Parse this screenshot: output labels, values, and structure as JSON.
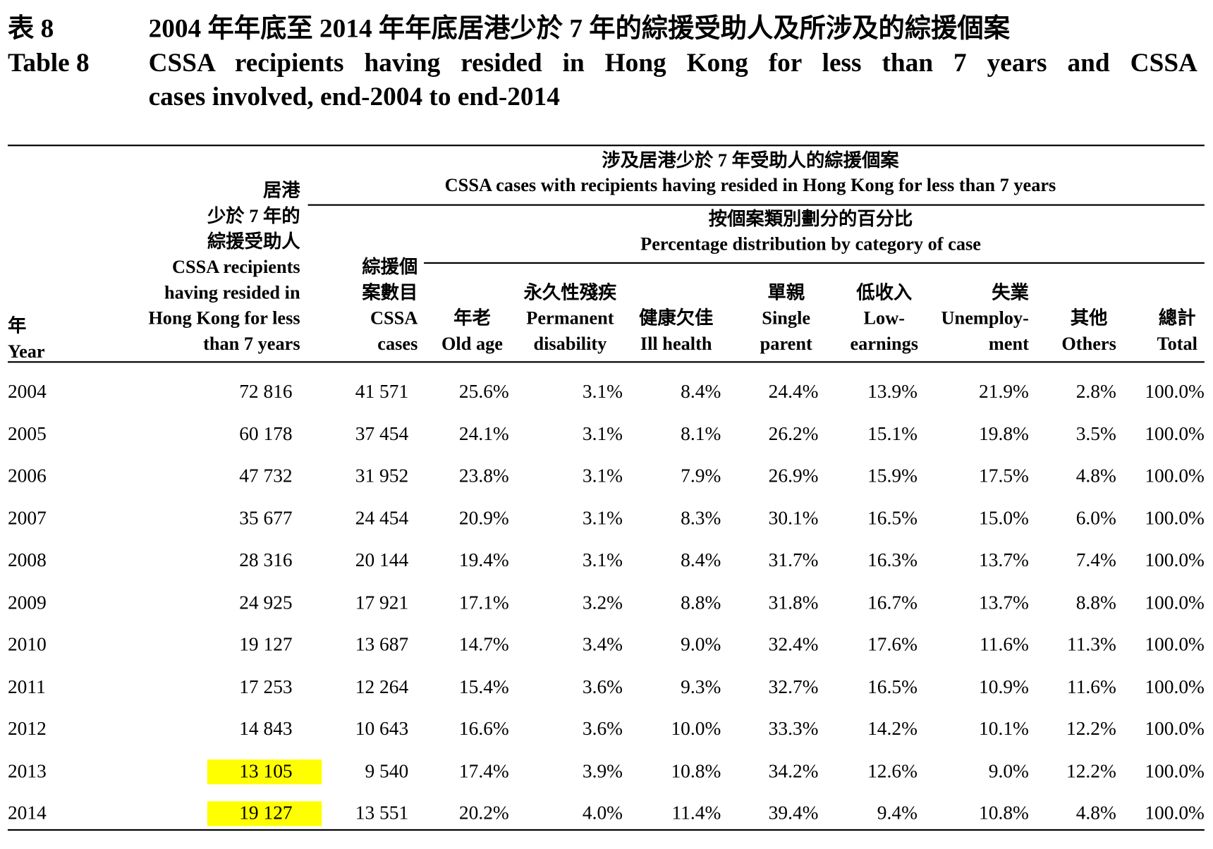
{
  "header": {
    "label_zh": "表 8",
    "label_en": "Table 8",
    "title_zh": "2004 年年底至 2014 年年底居港少於 7 年的綜援受助人及所涉及的綜援個案",
    "title_en_lines": [
      "CSSA recipients having resided in Hong Kong for less than 7 years and CSSA",
      "cases involved, end-2004 to end-2014"
    ]
  },
  "table": {
    "group_header": {
      "zh": "涉及居港少於 7 年受助人的綜援個案",
      "en": "CSSA cases with recipients having resided in Hong Kong for less than 7 years"
    },
    "subgroup_header": {
      "zh": "按個案類別劃分的百分比",
      "en": "Percentage distribution by category of case"
    },
    "column_headers": [
      [
        "年",
        "Year"
      ],
      [
        "居港",
        "少於 7 年的",
        "綜援受助人",
        "CSSA recipients",
        "having resided in",
        "Hong Kong for less",
        "than 7 years"
      ],
      [
        "綜援個",
        "案數目",
        "CSSA",
        "cases"
      ],
      [
        "年老",
        "Old age"
      ],
      [
        "永久性殘疾",
        "Permanent",
        "disability"
      ],
      [
        "健康欠佳",
        "Ill health"
      ],
      [
        "單親",
        "Single",
        "parent"
      ],
      [
        "低收入",
        "Low-",
        "earnings"
      ],
      [
        "失業",
        "Unemploy-",
        "ment"
      ],
      [
        "其他",
        "Others"
      ],
      [
        "總計",
        "Total"
      ]
    ],
    "rows": [
      [
        "2004",
        "72 816",
        "41 571",
        "25.6%",
        "3.1%",
        "8.4%",
        "24.4%",
        "13.9%",
        "21.9%",
        "2.8%",
        "100.0%"
      ],
      [
        "2005",
        "60 178",
        "37 454",
        "24.1%",
        "3.1%",
        "8.1%",
        "26.2%",
        "15.1%",
        "19.8%",
        "3.5%",
        "100.0%"
      ],
      [
        "2006",
        "47 732",
        "31 952",
        "23.8%",
        "3.1%",
        "7.9%",
        "26.9%",
        "15.9%",
        "17.5%",
        "4.8%",
        "100.0%"
      ],
      [
        "2007",
        "35 677",
        "24 454",
        "20.9%",
        "3.1%",
        "8.3%",
        "30.1%",
        "16.5%",
        "15.0%",
        "6.0%",
        "100.0%"
      ],
      [
        "2008",
        "28 316",
        "20 144",
        "19.4%",
        "3.1%",
        "8.4%",
        "31.7%",
        "16.3%",
        "13.7%",
        "7.4%",
        "100.0%"
      ],
      [
        "2009",
        "24 925",
        "17 921",
        "17.1%",
        "3.2%",
        "8.8%",
        "31.8%",
        "16.7%",
        "13.7%",
        "8.8%",
        "100.0%"
      ],
      [
        "2010",
        "19 127",
        "13 687",
        "14.7%",
        "3.4%",
        "9.0%",
        "32.4%",
        "17.6%",
        "11.6%",
        "11.3%",
        "100.0%"
      ],
      [
        "2011",
        "17 253",
        "12 264",
        "15.4%",
        "3.6%",
        "9.3%",
        "32.7%",
        "16.5%",
        "10.9%",
        "11.6%",
        "100.0%"
      ],
      [
        "2012",
        "14 843",
        "10 643",
        "16.6%",
        "3.6%",
        "10.0%",
        "33.3%",
        "14.2%",
        "10.1%",
        "12.2%",
        "100.0%"
      ],
      [
        "2013",
        "13 105",
        "9 540",
        "17.4%",
        "3.9%",
        "10.8%",
        "34.2%",
        "12.6%",
        "9.0%",
        "12.2%",
        "100.0%"
      ],
      [
        "2014",
        "19 127",
        "13 551",
        "20.2%",
        "4.0%",
        "11.4%",
        "39.4%",
        "9.4%",
        "10.8%",
        "4.8%",
        "100.0%"
      ]
    ],
    "highlight": {
      "color": "#ffff00",
      "cells": [
        [
          9,
          1
        ],
        [
          10,
          1
        ]
      ]
    }
  }
}
